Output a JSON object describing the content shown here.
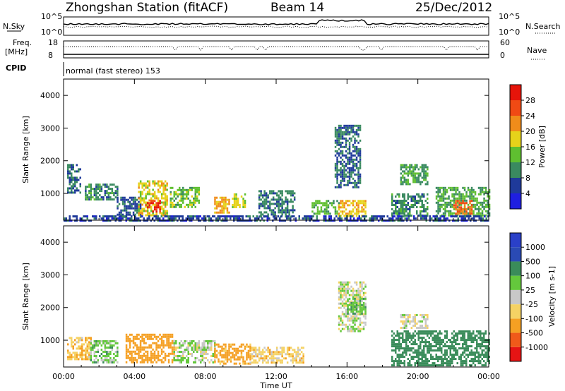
{
  "header": {
    "station": "Zhongshan Station (fitACF)",
    "beam": "Beam 14",
    "date": "25/Dec/2012"
  },
  "aux_labels": {
    "nsky": "N.Sky",
    "nsearch": "N.Search",
    "freq": "Freq.",
    "freq_unit": "[MHz]",
    "nave": "Nave",
    "cpid": "CPID",
    "cpid_text": "normal (fast stereo) 153",
    "nsky_ticks": [
      "10^5",
      "10^0"
    ],
    "nsearch_ticks": [
      "10^5",
      "10^0"
    ],
    "freq_ticks": [
      "18",
      "8"
    ],
    "nave_ticks": [
      "60",
      "0"
    ]
  },
  "colors": {
    "power": [
      "#1f1fe0",
      "#1f3a9a",
      "#3a8a60",
      "#5fbf30",
      "#e6d21a",
      "#f08c1a",
      "#f04a14",
      "#e6140a"
    ],
    "velocity": [
      "#e61414",
      "#f05a1a",
      "#f5a023",
      "#f5d264",
      "#c8c8c8",
      "#64c83c",
      "#3a8c5a",
      "#2a4ab4",
      "#2a40c8"
    ]
  },
  "chart_data": [
    {
      "type": "heatmap",
      "name": "power",
      "ylabel": "Slant Range [km]",
      "xlabel": "",
      "x_ticks": [
        "00:00",
        "04:00",
        "08:00",
        "12:00",
        "16:00",
        "20:00",
        "00:00"
      ],
      "xlim_hours": [
        0,
        24
      ],
      "ylim": [
        180,
        4500
      ],
      "y_ticks": [
        1000,
        2000,
        3000,
        4000
      ],
      "colorbar": {
        "label": "Power [dB]",
        "tick_labels": [
          "4",
          "8",
          "12",
          "16",
          "20",
          "24",
          "28"
        ],
        "range": [
          0,
          32
        ]
      },
      "echo_regions": [
        {
          "t0": 0.2,
          "t1": 0.9,
          "r0": 1000,
          "r1": 1900,
          "v": 8
        },
        {
          "t0": 1.2,
          "t1": 3.0,
          "r0": 800,
          "r1": 1300,
          "v": 10
        },
        {
          "t0": 3.0,
          "t1": 4.3,
          "r0": 300,
          "r1": 900,
          "v": 7
        },
        {
          "t0": 4.2,
          "t1": 5.8,
          "r0": 350,
          "r1": 1400,
          "v": 18
        },
        {
          "t0": 4.6,
          "t1": 5.4,
          "r0": 450,
          "r1": 800,
          "v": 29
        },
        {
          "t0": 6.0,
          "t1": 7.6,
          "r0": 600,
          "r1": 1200,
          "v": 14
        },
        {
          "t0": 8.5,
          "t1": 9.3,
          "r0": 400,
          "r1": 900,
          "v": 20
        },
        {
          "t0": 9.5,
          "t1": 10.2,
          "r0": 600,
          "r1": 1000,
          "v": 17
        },
        {
          "t0": 11.0,
          "t1": 13.0,
          "r0": 300,
          "r1": 1100,
          "v": 9
        },
        {
          "t0": 14.0,
          "t1": 15.5,
          "r0": 400,
          "r1": 800,
          "v": 13
        },
        {
          "t0": 15.3,
          "t1": 16.7,
          "r0": 1200,
          "r1": 3100,
          "v": 8
        },
        {
          "t0": 15.5,
          "t1": 17.0,
          "r0": 300,
          "r1": 800,
          "v": 19
        },
        {
          "t0": 18.5,
          "t1": 20.5,
          "r0": 300,
          "r1": 1000,
          "v": 10
        },
        {
          "t0": 19.0,
          "t1": 20.5,
          "r0": 1300,
          "r1": 1900,
          "v": 11
        },
        {
          "t0": 21.0,
          "t1": 24.0,
          "r0": 300,
          "r1": 1200,
          "v": 12
        },
        {
          "t0": 22.0,
          "t1": 23.0,
          "r0": 400,
          "r1": 800,
          "v": 24
        },
        {
          "t0": 0.0,
          "t1": 24.0,
          "r0": 180,
          "r1": 330,
          "v": 6
        }
      ]
    },
    {
      "type": "heatmap",
      "name": "velocity",
      "ylabel": "Slant Range [km]",
      "xlabel": "Time UT",
      "x_ticks": [
        "00:00",
        "04:00",
        "08:00",
        "12:00",
        "16:00",
        "20:00",
        "00:00"
      ],
      "xlim_hours": [
        0,
        24
      ],
      "ylim": [
        180,
        4500
      ],
      "y_ticks": [
        1000,
        2000,
        3000,
        4000
      ],
      "colorbar": {
        "label": "Velocity [m s-1]",
        "tick_labels": [
          "-1000",
          "-500",
          "-100",
          "-25",
          "25",
          "100",
          "500",
          "1000"
        ],
        "range": [
          -1000,
          1000
        ]
      },
      "echo_regions": [
        {
          "t0": 0.2,
          "t1": 1.5,
          "r0": 400,
          "r1": 1100,
          "v": -80
        },
        {
          "t0": 1.5,
          "t1": 3.0,
          "r0": 300,
          "r1": 1000,
          "v": 60
        },
        {
          "t0": 3.5,
          "t1": 6.2,
          "r0": 300,
          "r1": 1200,
          "v": -250
        },
        {
          "t0": 6.2,
          "t1": 8.5,
          "r0": 300,
          "r1": 1000,
          "v": 20
        },
        {
          "t0": 8.5,
          "t1": 10.5,
          "r0": 300,
          "r1": 900,
          "v": -150
        },
        {
          "t0": 10.5,
          "t1": 13.5,
          "r0": 300,
          "r1": 800,
          "v": -60
        },
        {
          "t0": 15.5,
          "t1": 17.0,
          "r0": 1300,
          "r1": 2800,
          "v": 0
        },
        {
          "t0": 16.0,
          "t1": 17.0,
          "r0": 1800,
          "r1": 2300,
          "v": 80
        },
        {
          "t0": 18.5,
          "t1": 24.0,
          "r0": 250,
          "r1": 1300,
          "v": 300
        },
        {
          "t0": 19.0,
          "t1": 20.5,
          "r0": 1400,
          "r1": 1800,
          "v": 0
        }
      ]
    }
  ]
}
